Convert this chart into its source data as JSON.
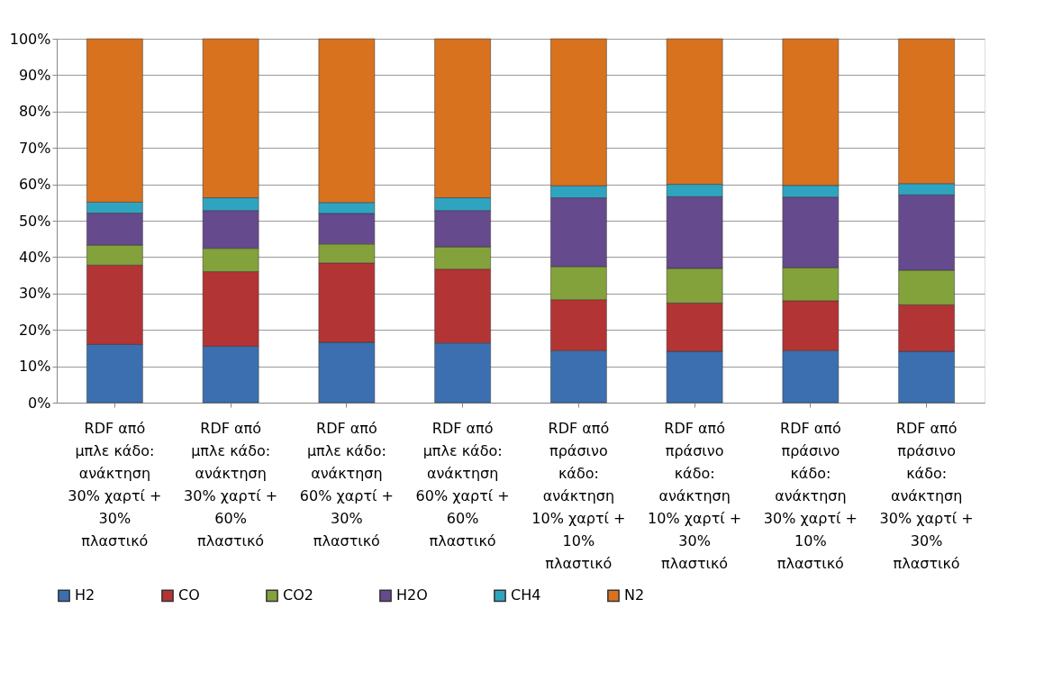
{
  "chart_data": {
    "type": "bar",
    "stacked": true,
    "categories": [
      "RDF από μπλε κάδο: ανάκτηση 30% χαρτί + 30% πλαστικό",
      "RDF από μπλε κάδο: ανάκτηση 30% χαρτί + 60% πλαστικό",
      "RDF από μπλε κάδο: ανάκτηση 60% χαρτί + 30% πλαστικό",
      "RDF από μπλε κάδο: ανάκτηση 60% χαρτί + 60% πλαστικό",
      "RDF από πράσινο κάδο: ανάκτηση 10% χαρτί + 10% πλαστικό",
      "RDF από πράσινο κάδο: ανάκτηση 10% χαρτί + 30% πλαστικό",
      "RDF από πράσινο κάδο: ανάκτηση 30% χαρτί + 10% πλαστικό",
      "RDF από πράσινο κάδο: ανάκτηση 30% χαρτί + 30% πλαστικό"
    ],
    "series": [
      {
        "name": "H2",
        "color": "#3b6fb0",
        "values": [
          16.0,
          15.5,
          16.6,
          16.4,
          14.3,
          14.1,
          14.3,
          14.1
        ]
      },
      {
        "name": "CO",
        "color": "#b33434",
        "values": [
          21.8,
          20.5,
          21.8,
          20.3,
          14.0,
          13.3,
          13.7,
          12.8
        ]
      },
      {
        "name": "CO2",
        "color": "#84a23c",
        "values": [
          5.5,
          6.4,
          5.2,
          6.1,
          9.1,
          9.5,
          9.1,
          9.5
        ]
      },
      {
        "name": "H2O",
        "color": "#654a8e",
        "values": [
          8.8,
          10.4,
          8.4,
          10.0,
          18.9,
          19.7,
          19.4,
          20.7
        ]
      },
      {
        "name": "CH4",
        "color": "#2fa4c0",
        "values": [
          3.0,
          3.5,
          3.0,
          3.5,
          3.3,
          3.4,
          3.2,
          3.1
        ]
      },
      {
        "name": "N2",
        "color": "#d8721f",
        "values": [
          44.9,
          43.7,
          45.0,
          43.7,
          40.4,
          40.0,
          40.3,
          39.8
        ]
      }
    ],
    "ylim": [
      0,
      100
    ],
    "yticks": [
      {
        "value": 0,
        "label": "0%"
      },
      {
        "value": 10,
        "label": "10%"
      },
      {
        "value": 20,
        "label": "20%"
      },
      {
        "value": 30,
        "label": "30%"
      },
      {
        "value": 40,
        "label": "40%"
      },
      {
        "value": 50,
        "label": "50%"
      },
      {
        "value": 60,
        "label": "60%"
      },
      {
        "value": 70,
        "label": "70%"
      },
      {
        "value": 80,
        "label": "80%"
      },
      {
        "value": 90,
        "label": "90%"
      },
      {
        "value": 100,
        "label": "100%"
      }
    ],
    "grid": "y",
    "legend": "bottom"
  }
}
